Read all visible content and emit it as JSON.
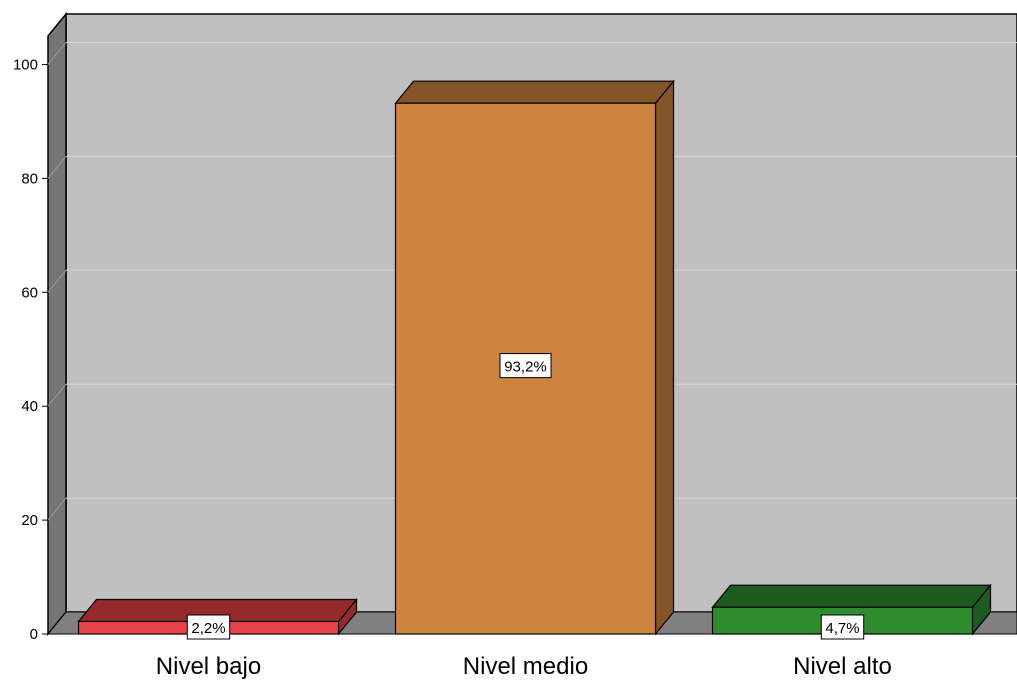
{
  "chart_data": {
    "type": "bar",
    "title": "",
    "xlabel": "",
    "ylabel": "",
    "ylim": [
      0,
      105
    ],
    "y_ticks": [
      0,
      20,
      40,
      60,
      80,
      100
    ],
    "categories": [
      "Nivel bajo",
      "Nivel medio",
      "Nivel alto"
    ],
    "values": [
      2.2,
      93.2,
      4.7
    ],
    "data_labels": [
      "2,2%",
      "93,2%",
      "4,7%"
    ],
    "colors": [
      "#e8434a",
      "#cc843e",
      "#2e8b2e"
    ],
    "top_colors": [
      "#952a2d",
      "#85552a",
      "#1e5b1e"
    ],
    "side_colors": [
      "#952a2d",
      "#85552a",
      "#1e5b1e"
    ],
    "grid": true,
    "legend": "none",
    "style": "3d-bars"
  }
}
